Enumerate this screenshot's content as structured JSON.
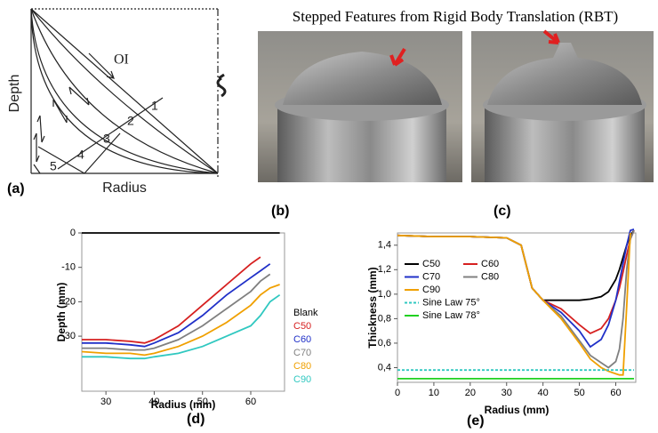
{
  "header": {
    "caption": "Stepped Features from Rigid Body Translation (RBT)"
  },
  "panel_labels": [
    "(a)",
    "(b)",
    "(c)",
    "(d)",
    "(e)"
  ],
  "diagram": {
    "x_label": "Radius",
    "y_label": "Depth",
    "path_label": "OI",
    "stage_labels": [
      "1",
      "2",
      "3",
      "4",
      "5"
    ]
  },
  "chart_data": [
    {
      "type": "line",
      "x_label": "Radius (mm)",
      "y_label": "Depth (mm)",
      "legend": "right",
      "x": [
        25,
        30,
        35,
        38,
        40,
        45,
        50,
        55,
        60,
        62,
        64,
        66
      ],
      "series": [
        {
          "name": "Blank",
          "color": "#000000",
          "values": [
            0,
            0,
            0,
            0,
            0,
            0,
            0,
            0,
            0,
            0,
            0,
            0
          ]
        },
        {
          "name": "C50",
          "color": "#d62020",
          "values": [
            -31,
            -31,
            -31.5,
            -32,
            -31,
            -27,
            -21,
            -15,
            -9,
            -7,
            null,
            null
          ]
        },
        {
          "name": "C60",
          "color": "#2030c8",
          "values": [
            -32,
            -32,
            -32.5,
            -33,
            -32,
            -29,
            -24,
            -18,
            -13,
            -11,
            -9,
            null
          ]
        },
        {
          "name": "C70",
          "color": "#808080",
          "values": [
            -33.5,
            -33.5,
            -34,
            -34,
            -33.5,
            -31,
            -27,
            -22,
            -17,
            -14,
            -12,
            null
          ]
        },
        {
          "name": "C80",
          "color": "#f0a000",
          "values": [
            -34.5,
            -35,
            -35,
            -35.5,
            -35,
            -33,
            -30,
            -26,
            -21,
            -18,
            -16,
            -15
          ]
        },
        {
          "name": "C90",
          "color": "#30c8c0",
          "values": [
            -36,
            -36,
            -36.5,
            -36.5,
            -36,
            -35,
            -33,
            -30,
            -27,
            -24,
            -20,
            -18
          ]
        }
      ],
      "xlim": [
        25,
        67
      ],
      "ylim": [
        -46,
        0
      ],
      "xticks": [
        30,
        40,
        50,
        60
      ],
      "yticks": [
        0,
        -10,
        -20,
        -30
      ]
    },
    {
      "type": "line",
      "x_label": "Radius (mm)",
      "y_label": "Thickness (mm)",
      "legend": "upper left",
      "x": [
        0,
        10,
        20,
        30,
        34,
        37,
        40,
        45,
        50,
        53,
        56,
        58,
        60,
        61,
        62,
        63,
        64,
        65
      ],
      "series": [
        {
          "name": "C50",
          "color": "#000000",
          "values": [
            1.48,
            1.47,
            1.47,
            1.46,
            1.4,
            1.05,
            0.95,
            0.95,
            0.95,
            0.96,
            0.98,
            1.02,
            1.12,
            1.2,
            1.3,
            1.4,
            1.48,
            1.52
          ]
        },
        {
          "name": "C60",
          "color": "#d62020",
          "values": [
            1.48,
            1.47,
            1.47,
            1.46,
            1.4,
            1.05,
            0.95,
            0.88,
            0.75,
            0.68,
            0.72,
            0.8,
            0.95,
            1.05,
            1.18,
            1.32,
            1.45,
            1.52
          ]
        },
        {
          "name": "C70",
          "color": "#2030c8",
          "values": [
            1.48,
            1.47,
            1.47,
            1.46,
            1.4,
            1.05,
            0.95,
            0.85,
            0.7,
            0.57,
            0.63,
            0.75,
            0.95,
            1.1,
            1.25,
            1.4,
            1.52,
            1.53
          ]
        },
        {
          "name": "C80",
          "color": "#808080",
          "values": [
            1.48,
            1.47,
            1.47,
            1.46,
            1.4,
            1.05,
            0.95,
            0.82,
            0.62,
            0.5,
            0.44,
            0.4,
            0.45,
            0.55,
            0.8,
            1.2,
            1.45,
            1.52
          ]
        },
        {
          "name": "C90",
          "color": "#f0a000",
          "values": [
            1.48,
            1.47,
            1.47,
            1.46,
            1.4,
            1.05,
            0.95,
            0.8,
            0.6,
            0.47,
            0.4,
            0.37,
            0.35,
            0.34,
            0.34,
            0.9,
            1.5,
            null
          ]
        },
        {
          "name": "Sine Law 75°",
          "color": "#30c8c0",
          "dash": true,
          "values": [
            0.38,
            0.38,
            0.38,
            0.38,
            0.38,
            0.38,
            0.38,
            0.38,
            0.38,
            0.38,
            0.38,
            0.38,
            0.38,
            0.38,
            0.38,
            0.38,
            0.38,
            0.38
          ]
        },
        {
          "name": "Sine Law 78°",
          "color": "#20d020",
          "values": [
            0.31,
            0.31,
            0.31,
            0.31,
            0.31,
            0.31,
            0.31,
            0.31,
            0.31,
            0.31,
            0.31,
            0.31,
            0.31,
            0.31,
            0.31,
            0.31,
            0.31,
            0.31
          ]
        }
      ],
      "xlim": [
        0,
        65.5
      ],
      "ylim": [
        0.28,
        1.5
      ],
      "xticks": [
        0,
        10,
        20,
        30,
        40,
        50,
        60
      ],
      "yticks": [
        {
          "value": 0.4,
          "label": "0,4"
        },
        {
          "value": 0.6,
          "label": "0,6"
        },
        {
          "value": 0.8,
          "label": "0,8"
        },
        {
          "value": 1.0,
          "label": "1,0"
        },
        {
          "value": 1.2,
          "label": "1,2"
        },
        {
          "value": 1.4,
          "label": "1,4"
        }
      ]
    }
  ]
}
